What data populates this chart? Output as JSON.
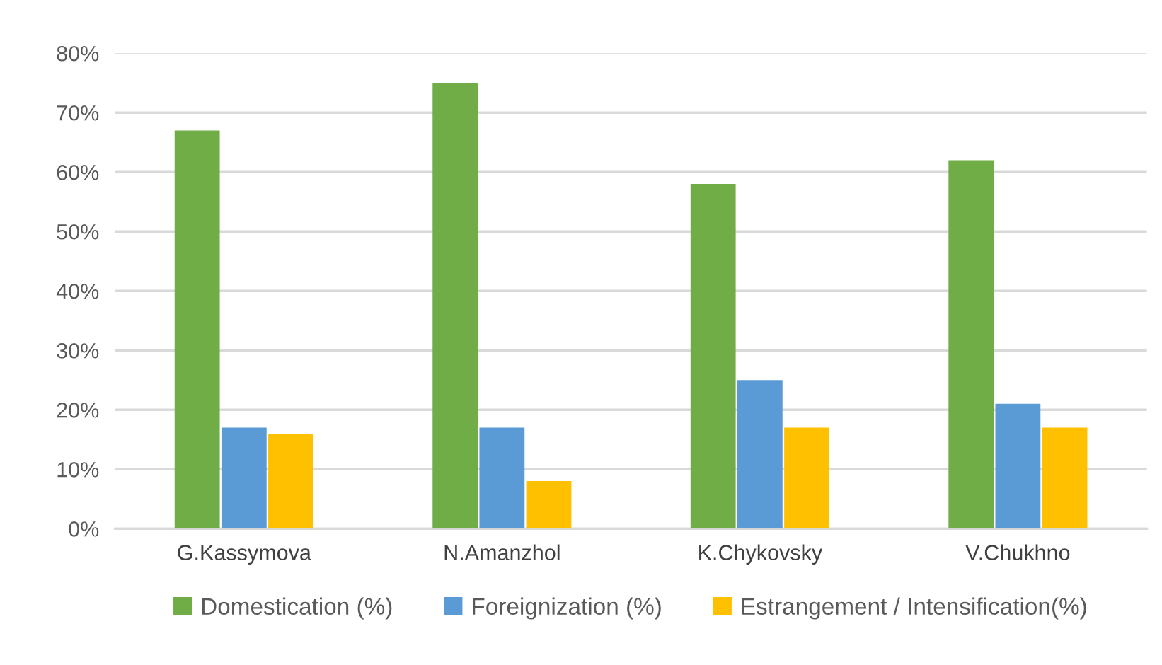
{
  "chart_data": {
    "type": "bar",
    "categories": [
      "G.Kassymova",
      "N.Amanzhol",
      "K.Chykovsky",
      "V.Chukhno"
    ],
    "series": [
      {
        "name": "Domestication (%)",
        "color": "#70ad47",
        "values": [
          67,
          75,
          58,
          62
        ]
      },
      {
        "name": "Foreignization (%)",
        "color": "#5b9bd5",
        "values": [
          17,
          17,
          25,
          21
        ]
      },
      {
        "name": "Estrangement / Intensification(%)",
        "color": "#ffc000",
        "values": [
          16,
          8,
          17,
          17
        ]
      }
    ],
    "ylim": [
      0,
      80
    ],
    "yticks": [
      {
        "value": 0,
        "label": "0%"
      },
      {
        "value": 10,
        "label": "10%"
      },
      {
        "value": 20,
        "label": "20%"
      },
      {
        "value": 30,
        "label": "30%"
      },
      {
        "value": 40,
        "label": "40%"
      },
      {
        "value": 50,
        "label": "50%"
      },
      {
        "value": 60,
        "label": "60%"
      },
      {
        "value": 70,
        "label": "70%"
      },
      {
        "value": 80,
        "label": "80%"
      }
    ],
    "grid": "y",
    "legend": "bottom"
  }
}
